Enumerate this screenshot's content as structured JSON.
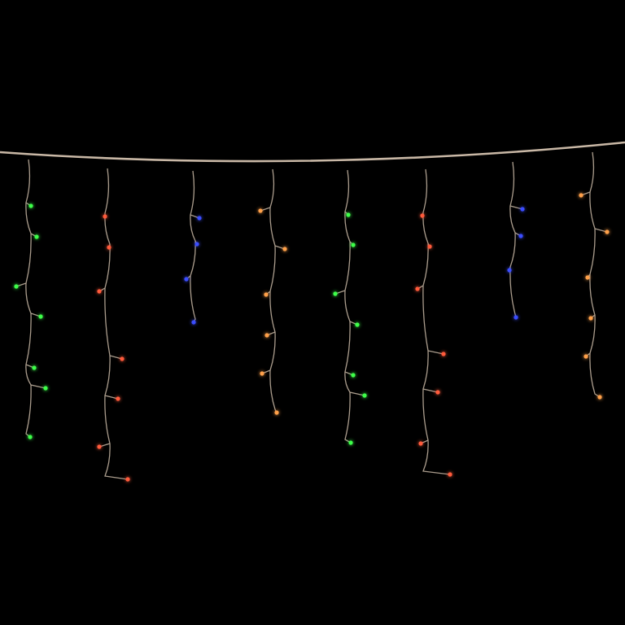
{
  "scene": {
    "background_color": "#000000",
    "wire_color": "#c9b8a6",
    "strands": [
      {
        "color_name": "green",
        "color": "#3dff4a"
      },
      {
        "color_name": "red",
        "color": "#ff5a3a"
      },
      {
        "color_name": "blue",
        "color": "#3a4dff"
      },
      {
        "color_name": "orange",
        "color": "#ffa04a"
      },
      {
        "color_name": "green",
        "color": "#3dff4a"
      },
      {
        "color_name": "red",
        "color": "#ff5a3a"
      },
      {
        "color_name": "blue",
        "color": "#3a4dff"
      },
      {
        "color_name": "orange",
        "color": "#ffa04a"
      }
    ]
  }
}
